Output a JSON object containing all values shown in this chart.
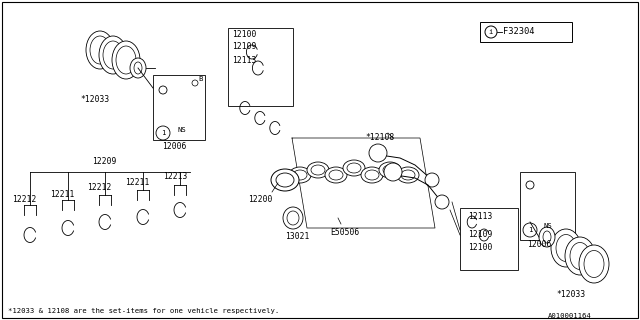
{
  "background_color": "#ffffff",
  "fig_width": 6.4,
  "fig_height": 3.2,
  "dpi": 100,
  "footnote": "*12033 & 12108 are the set-items for one vehicle respectively.",
  "diagram_id": "A010001164",
  "ref_box_label": "F32304"
}
